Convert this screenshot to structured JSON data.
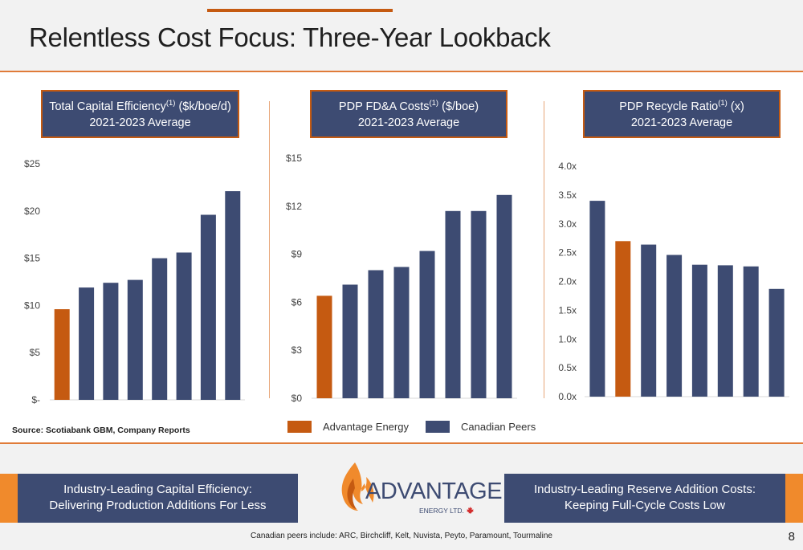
{
  "slide": {
    "title": "Relentless Cost Focus: Three-Year Lookback",
    "source": "Source: Scotiabank GBM, Company Reports",
    "footnote": "Canadian peers include: ARC, Birchcliff, Kelt, Nuvista, Peyto, Paramount, Tourmaline",
    "page_number": "8"
  },
  "legend": [
    {
      "label": "Advantage Energy",
      "color": "#c55a11"
    },
    {
      "label": "Canadian Peers",
      "color": "#3d4b72"
    }
  ],
  "footer": {
    "left_line1": "Industry-Leading Capital Efficiency:",
    "left_line2": "Delivering Production Additions For Less",
    "right_line1": "Industry-Leading Reserve Addition Costs:",
    "right_line2": "Keeping Full-Cycle Costs Low"
  },
  "logo": {
    "word": "ADVANTAGE",
    "sub": "ENERGY LTD."
  },
  "colors": {
    "advantage": "#c55a11",
    "peers": "#3d4b72",
    "accent": "#e07b39"
  },
  "chart_data": [
    {
      "type": "bar",
      "title_main": "Total Capital Efficiency",
      "title_sup": "(1)",
      "title_unit": " ($k/boe/d)",
      "subtitle": "2021-2023 Average",
      "ylim": [
        0,
        25
      ],
      "yticks": [
        0,
        5,
        10,
        15,
        20,
        25
      ],
      "yticklabels": [
        "$-",
        "$5",
        "$10",
        "$15",
        "$20",
        "$25"
      ],
      "values": [
        9.6,
        11.9,
        12.4,
        12.7,
        15.0,
        15.6,
        19.6,
        22.1
      ],
      "highlight": [
        0
      ]
    },
    {
      "type": "bar",
      "title_main": "PDP FD&A Costs",
      "title_sup": "(1)",
      "title_unit": " ($/boe)",
      "subtitle": "2021-2023 Average",
      "ylim": [
        0,
        15
      ],
      "yticks": [
        0,
        3,
        6,
        9,
        12,
        15
      ],
      "yticklabels": [
        "$0",
        "$3",
        "$6",
        "$9",
        "$12",
        "$15"
      ],
      "values": [
        6.4,
        7.1,
        8.0,
        8.2,
        9.2,
        11.7,
        11.7,
        12.7
      ],
      "highlight": [
        0
      ]
    },
    {
      "type": "bar",
      "title_main": "PDP Recycle Ratio",
      "title_sup": "(1)",
      "title_unit": " (x)",
      "subtitle": "2021-2023 Average",
      "ylim": [
        0,
        4
      ],
      "yticks": [
        0,
        0.5,
        1,
        1.5,
        2,
        2.5,
        3,
        3.5,
        4
      ],
      "yticklabels": [
        "0.0x",
        "0.5x",
        "1.0x",
        "1.5x",
        "2.0x",
        "2.5x",
        "3.0x",
        "3.5x",
        "4.0x"
      ],
      "values": [
        3.4,
        2.7,
        2.64,
        2.46,
        2.29,
        2.28,
        2.26,
        1.87
      ],
      "highlight": [
        1
      ]
    }
  ]
}
